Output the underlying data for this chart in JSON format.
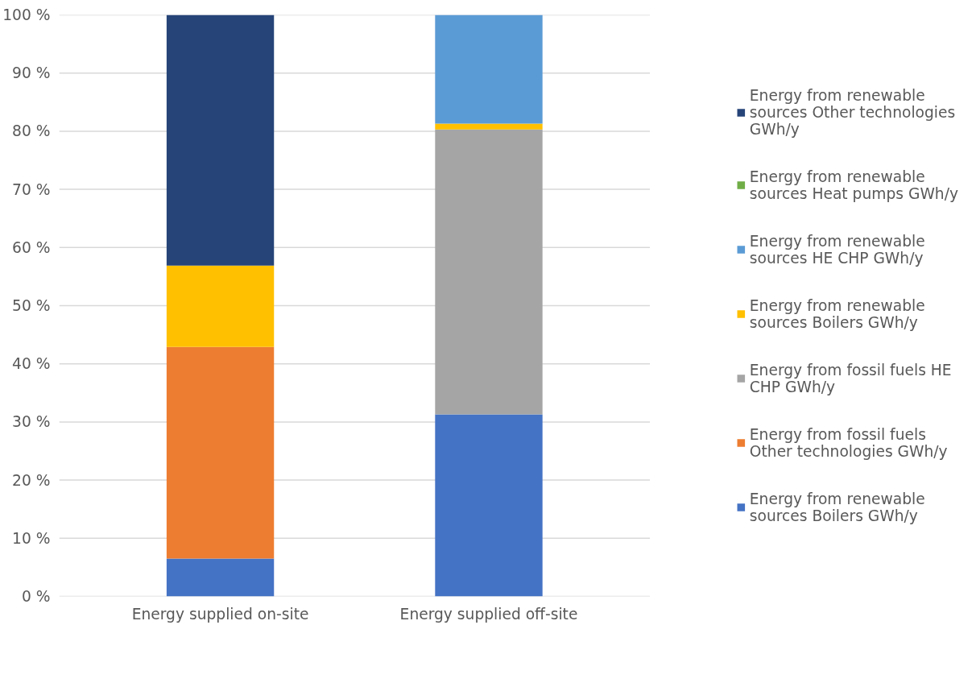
{
  "chart_data": {
    "type": "bar",
    "stacked": true,
    "categories": [
      "Energy supplied on-site",
      "Energy supplied off-site"
    ],
    "series": [
      {
        "name": "Energy from renewable sources Boilers GWh/y",
        "color": "#4472c4",
        "values": [
          6.5,
          31.3
        ]
      },
      {
        "name": "Energy from fossil fuels Other technologies GWh/y",
        "color": "#ed7d31",
        "values": [
          36.4,
          0
        ]
      },
      {
        "name": "Energy from fossil fuels HE CHP GWh/y",
        "color": "#a5a5a5",
        "values": [
          0,
          49.0
        ]
      },
      {
        "name": "Energy from renewable sources Boilers GWh/y",
        "color": "#ffc000",
        "values": [
          14.0,
          1.0
        ]
      },
      {
        "name": "Energy from renewable sources HE CHP GWh/y",
        "color": "#5b9bd5",
        "values": [
          0,
          18.7
        ]
      },
      {
        "name": "Energy from renewable sources Heat pumps GWh/y",
        "color": "#70ad47",
        "values": [
          0,
          0
        ]
      },
      {
        "name": "Energy from renewable sources Other technologies GWh/y",
        "color": "#264478",
        "values": [
          43.1,
          0
        ]
      }
    ],
    "ylim": [
      0,
      100
    ],
    "yticks": [
      {
        "value": 0,
        "label": "0 %"
      },
      {
        "value": 10,
        "label": "10 %"
      },
      {
        "value": 20,
        "label": "20 %"
      },
      {
        "value": 30,
        "label": "30 %"
      },
      {
        "value": 40,
        "label": "40 %"
      },
      {
        "value": 50,
        "label": "50 %"
      },
      {
        "value": 60,
        "label": "60 %"
      },
      {
        "value": 70,
        "label": "70 %"
      },
      {
        "value": 80,
        "label": "80 %"
      },
      {
        "value": 90,
        "label": "90 %"
      },
      {
        "value": 100,
        "label": "100 %"
      }
    ],
    "grid": "y",
    "legend": "right"
  }
}
